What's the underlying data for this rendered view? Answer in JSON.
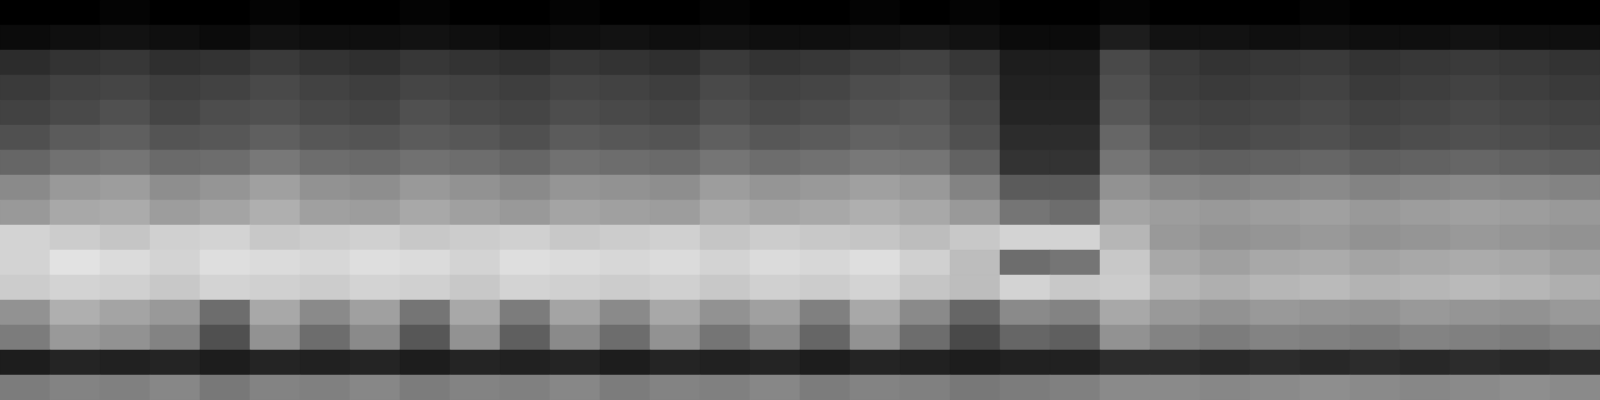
{
  "chart_data": {
    "type": "heatmap",
    "tick_labels": false,
    "zlim": [
      0,
      70
    ],
    "cells": [
      [
        0,
        0,
        1,
        0,
        0,
        1,
        0,
        0,
        1,
        0,
        0,
        1,
        0,
        0,
        1,
        0,
        0,
        1,
        0,
        1,
        0,
        0,
        1,
        0,
        0,
        0,
        1,
        0,
        0,
        0,
        0,
        0
      ],
      [
        3,
        4,
        5,
        4,
        3,
        5,
        4,
        4,
        5,
        4,
        3,
        4,
        5,
        4,
        5,
        4,
        4,
        5,
        6,
        5,
        3,
        3,
        8,
        5,
        5,
        4,
        5,
        4,
        4,
        5,
        4,
        4
      ],
      [
        12,
        14,
        15,
        13,
        14,
        16,
        14,
        13,
        15,
        14,
        13,
        15,
        14,
        13,
        16,
        14,
        15,
        17,
        18,
        15,
        8,
        8,
        20,
        16,
        14,
        15,
        16,
        14,
        15,
        16,
        15,
        14
      ],
      [
        16,
        18,
        19,
        17,
        18,
        20,
        18,
        17,
        19,
        18,
        17,
        19,
        18,
        17,
        20,
        18,
        19,
        21,
        22,
        18,
        9,
        9,
        22,
        17,
        16,
        17,
        18,
        16,
        17,
        18,
        17,
        16
      ],
      [
        18,
        20,
        22,
        19,
        21,
        22,
        20,
        19,
        22,
        20,
        19,
        21,
        20,
        19,
        22,
        20,
        21,
        23,
        24,
        20,
        10,
        10,
        24,
        19,
        18,
        19,
        20,
        18,
        19,
        20,
        19,
        18
      ],
      [
        22,
        25,
        26,
        23,
        24,
        26,
        24,
        23,
        25,
        24,
        22,
        25,
        24,
        23,
        26,
        24,
        25,
        27,
        26,
        22,
        12,
        12,
        28,
        21,
        20,
        21,
        22,
        20,
        21,
        22,
        21,
        20
      ],
      [
        28,
        31,
        32,
        29,
        30,
        33,
        30,
        29,
        31,
        30,
        28,
        31,
        30,
        29,
        32,
        30,
        31,
        33,
        32,
        27,
        14,
        14,
        32,
        27,
        26,
        27,
        28,
        26,
        27,
        28,
        27,
        26
      ],
      [
        38,
        42,
        43,
        39,
        41,
        44,
        40,
        39,
        42,
        40,
        38,
        41,
        40,
        39,
        43,
        41,
        42,
        44,
        42,
        36,
        25,
        25,
        40,
        37,
        36,
        37,
        38,
        36,
        37,
        38,
        37,
        36
      ],
      [
        42,
        46,
        47,
        43,
        45,
        48,
        44,
        43,
        46,
        44,
        42,
        45,
        44,
        43,
        47,
        45,
        46,
        48,
        46,
        42,
        32,
        30,
        45,
        43,
        42,
        43,
        44,
        42,
        43,
        44,
        43,
        42
      ],
      [
        58,
        56,
        54,
        57,
        58,
        55,
        56,
        57,
        55,
        56,
        57,
        55,
        56,
        57,
        54,
        56,
        55,
        54,
        52,
        55,
        58,
        58,
        50,
        42,
        40,
        41,
        42,
        40,
        41,
        42,
        41,
        40
      ],
      [
        58,
        62,
        60,
        58,
        61,
        60,
        59,
        61,
        60,
        58,
        61,
        60,
        59,
        60,
        58,
        60,
        59,
        61,
        57,
        52,
        30,
        32,
        55,
        46,
        44,
        46,
        47,
        45,
        46,
        47,
        46,
        44
      ],
      [
        56,
        58,
        57,
        55,
        58,
        57,
        56,
        58,
        57,
        55,
        58,
        57,
        56,
        57,
        55,
        57,
        56,
        58,
        54,
        52,
        58,
        55,
        56,
        50,
        48,
        50,
        51,
        49,
        50,
        51,
        50,
        48
      ],
      [
        40,
        48,
        45,
        42,
        30,
        46,
        38,
        44,
        32,
        46,
        34,
        45,
        38,
        46,
        40,
        44,
        35,
        46,
        38,
        28,
        38,
        36,
        46,
        42,
        40,
        42,
        41,
        40,
        42,
        41,
        40,
        42
      ],
      [
        34,
        42,
        40,
        36,
        22,
        40,
        30,
        38,
        24,
        40,
        26,
        38,
        30,
        40,
        32,
        38,
        28,
        40,
        30,
        20,
        28,
        26,
        40,
        36,
        34,
        36,
        35,
        34,
        36,
        35,
        34,
        36
      ],
      [
        8,
        10,
        9,
        10,
        8,
        10,
        9,
        10,
        8,
        10,
        9,
        10,
        8,
        10,
        9,
        10,
        8,
        10,
        9,
        8,
        9,
        9,
        12,
        12,
        11,
        12,
        11,
        12,
        11,
        12,
        11,
        12
      ],
      [
        34,
        36,
        35,
        37,
        33,
        36,
        35,
        37,
        34,
        36,
        35,
        37,
        34,
        36,
        35,
        37,
        34,
        36,
        35,
        33,
        34,
        35,
        38,
        38,
        37,
        38,
        39,
        38,
        37,
        38,
        39,
        38
      ]
    ]
  }
}
